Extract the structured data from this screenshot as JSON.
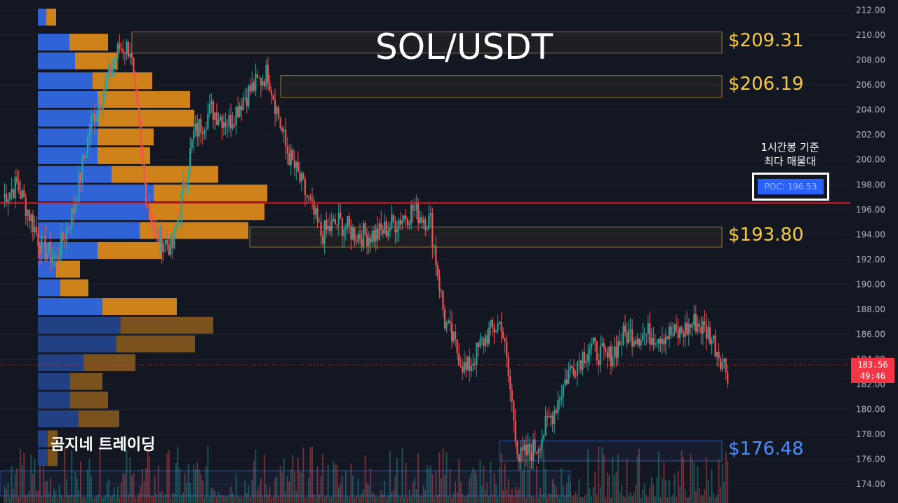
{
  "title": "SOL/USDT",
  "brand": "곰지네 트레이딩",
  "poc_note_line1": "1시간봉 기준",
  "poc_note_line2": "최다 매물대",
  "poc_label": "POC: 196.53",
  "current_price": "183.56",
  "countdown": "49:46",
  "zones": [
    {
      "label": "$209.31",
      "color": "#f7c843",
      "low": 208.55,
      "high": 210.25
    },
    {
      "label": "$206.19",
      "color": "#f7c843",
      "low": 205.0,
      "high": 206.75
    },
    {
      "label": "$193.80",
      "color": "#f7c843",
      "low": 193.0,
      "high": 194.6
    },
    {
      "label": "$176.48",
      "color": "#4c8dff",
      "low": 175.85,
      "high": 177.45
    }
  ],
  "chart_data": {
    "type": "candlestick",
    "ylim": [
      173,
      213
    ],
    "yticks": [
      "174.00",
      "176.00",
      "178.00",
      "180.00",
      "182.00",
      "184.00",
      "186.00",
      "188.00",
      "190.00",
      "192.00",
      "194.00",
      "196.00",
      "198.00",
      "200.00",
      "202.00",
      "204.00",
      "206.00",
      "208.00",
      "210.00",
      "212.00"
    ],
    "poc": 196.53,
    "last": 183.56,
    "up_color": "#26a69a",
    "down_color": "#ef5350",
    "anchors": [
      [
        0,
        197
      ],
      [
        8,
        198
      ],
      [
        14,
        196
      ],
      [
        22,
        193
      ],
      [
        30,
        192
      ],
      [
        40,
        196
      ],
      [
        50,
        203
      ],
      [
        58,
        206
      ],
      [
        66,
        209
      ],
      [
        72,
        209
      ],
      [
        80,
        198
      ],
      [
        86,
        194
      ],
      [
        96,
        193
      ],
      [
        108,
        202
      ],
      [
        118,
        204
      ],
      [
        128,
        203
      ],
      [
        136,
        205
      ],
      [
        150,
        207
      ],
      [
        160,
        201
      ],
      [
        172,
        197
      ],
      [
        180,
        194
      ],
      [
        190,
        195
      ],
      [
        200,
        194
      ],
      [
        212,
        194
      ],
      [
        222,
        195
      ],
      [
        232,
        196
      ],
      [
        242,
        195
      ],
      [
        250,
        187
      ],
      [
        262,
        183
      ],
      [
        274,
        186
      ],
      [
        282,
        187
      ],
      [
        292,
        176
      ],
      [
        302,
        177
      ],
      [
        312,
        180
      ],
      [
        320,
        183
      ],
      [
        332,
        185
      ],
      [
        342,
        184
      ],
      [
        352,
        186
      ],
      [
        362,
        186
      ],
      [
        372,
        186
      ],
      [
        382,
        186
      ],
      [
        392,
        187
      ],
      [
        400,
        186
      ],
      [
        410,
        183
      ]
    ],
    "profile": [
      {
        "p": 211.4,
        "buy": 12,
        "sell": 14
      },
      {
        "p": 209.4,
        "buy": 45,
        "sell": 55
      },
      {
        "p": 207.9,
        "buy": 53,
        "sell": 60
      },
      {
        "p": 206.3,
        "buy": 78,
        "sell": 85
      },
      {
        "p": 204.8,
        "buy": 85,
        "sell": 132
      },
      {
        "p": 203.3,
        "buy": 85,
        "sell": 138
      },
      {
        "p": 201.8,
        "buy": 85,
        "sell": 80
      },
      {
        "p": 200.3,
        "buy": 85,
        "sell": 75
      },
      {
        "p": 198.8,
        "buy": 105,
        "sell": 152
      },
      {
        "p": 197.3,
        "buy": 165,
        "sell": 162
      },
      {
        "p": 195.8,
        "buy": 158,
        "sell": 165
      },
      {
        "p": 194.3,
        "buy": 145,
        "sell": 155
      },
      {
        "p": 192.7,
        "buy": 85,
        "sell": 92
      },
      {
        "p": 191.2,
        "buy": 26,
        "sell": 34
      },
      {
        "p": 189.7,
        "buy": 32,
        "sell": 40
      },
      {
        "p": 188.2,
        "buy": 92,
        "sell": 106
      },
      {
        "p": 186.7,
        "buy": 118,
        "sell": 132
      },
      {
        "p": 185.2,
        "buy": 112,
        "sell": 112
      },
      {
        "p": 183.7,
        "buy": 65,
        "sell": 74
      },
      {
        "p": 182.2,
        "buy": 46,
        "sell": 46
      },
      {
        "p": 180.7,
        "buy": 46,
        "sell": 54
      },
      {
        "p": 179.2,
        "buy": 58,
        "sell": 58
      },
      {
        "p": 177.6,
        "buy": 14,
        "sell": 14
      },
      {
        "p": 176.1,
        "buy": 14,
        "sell": 14
      }
    ]
  }
}
